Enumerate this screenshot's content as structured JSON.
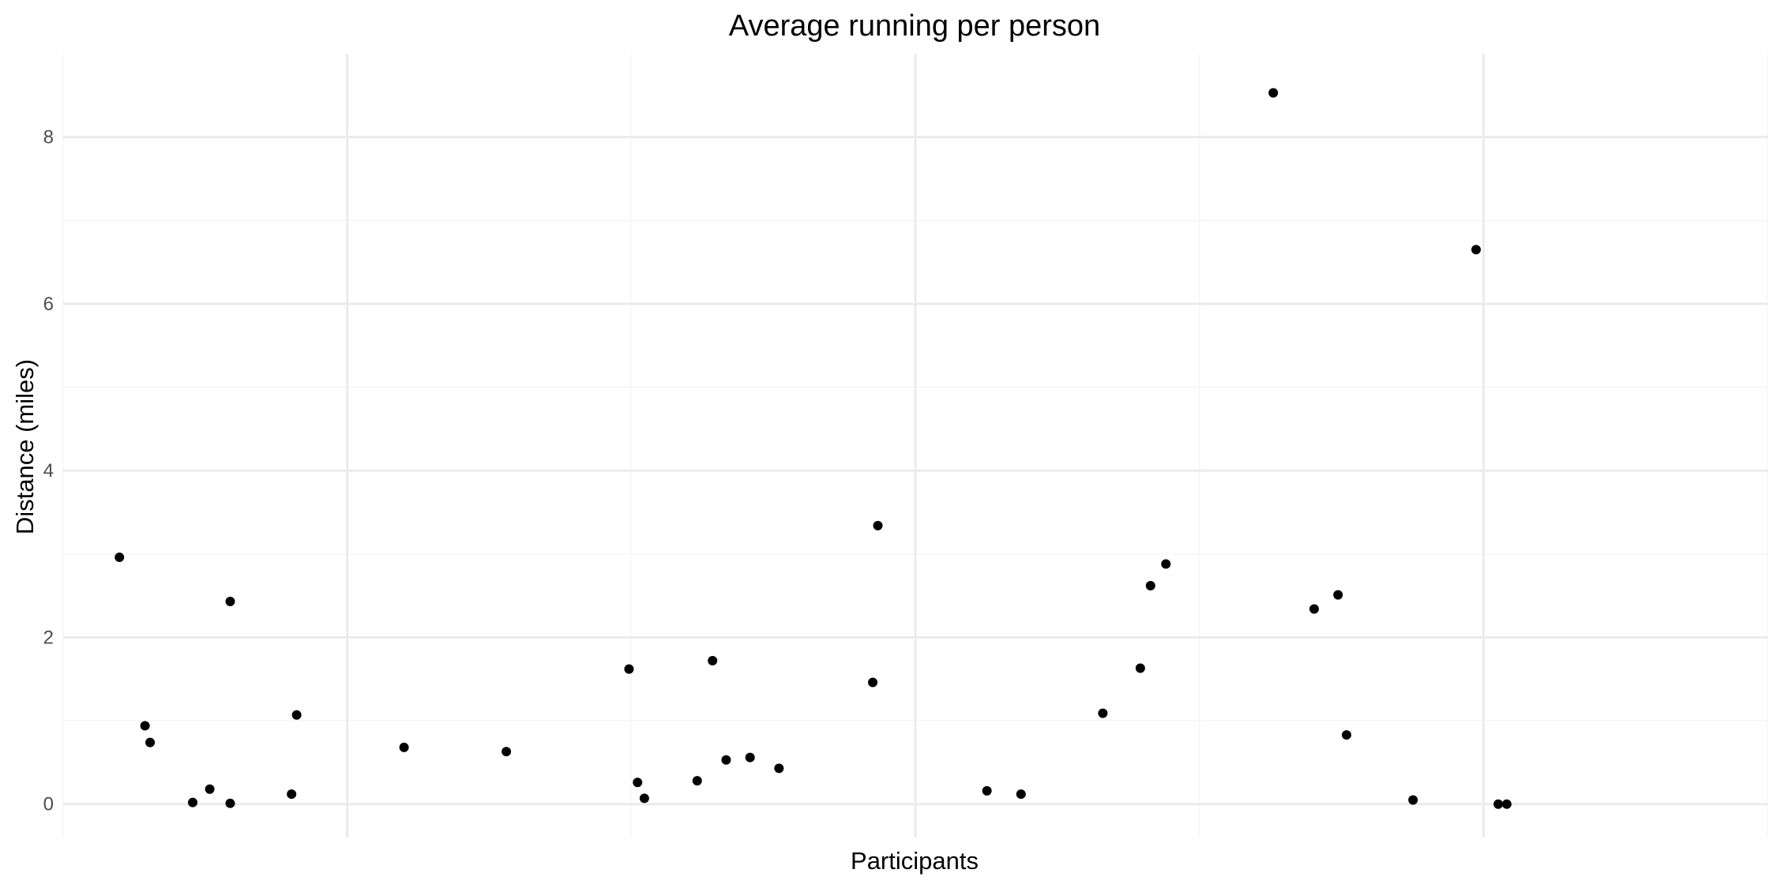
{
  "chart_data": {
    "type": "scatter",
    "title": "Average running per person",
    "xlabel": "Participants",
    "ylabel": "Distance (miles)",
    "ylim": [
      -0.4,
      9
    ],
    "xlim": [
      0,
      1
    ],
    "yticks": [
      0,
      2,
      4,
      6,
      8
    ],
    "yticklabels": [
      "0",
      "2",
      "4",
      "6",
      "8"
    ],
    "grid": true,
    "legend": "none",
    "x": [
      0.033,
      0.048,
      0.051,
      0.076,
      0.086,
      0.098,
      0.098,
      0.134,
      0.137,
      0.2,
      0.26,
      0.332,
      0.337,
      0.341,
      0.372,
      0.381,
      0.389,
      0.403,
      0.42,
      0.475,
      0.478,
      0.542,
      0.562,
      0.61,
      0.632,
      0.638,
      0.647,
      0.71,
      0.734,
      0.748,
      0.753,
      0.792,
      0.829,
      0.842,
      0.847
    ],
    "y": [
      2.96,
      0.94,
      0.74,
      0.02,
      0.18,
      2.43,
      0.01,
      0.12,
      1.07,
      0.68,
      0.63,
      1.62,
      0.26,
      0.07,
      0.28,
      1.72,
      0.53,
      0.56,
      0.43,
      1.46,
      3.34,
      0.16,
      0.12,
      1.09,
      1.63,
      2.62,
      2.88,
      8.53,
      2.34,
      2.51,
      0.83,
      0.05,
      6.65,
      0.0,
      0.0
    ]
  },
  "colors": {
    "points": "#000000",
    "grid_major": "#ebebeb",
    "grid_minor": "#f5f5f5",
    "tick_text": "#4d4d4d",
    "background": "#ffffff"
  }
}
